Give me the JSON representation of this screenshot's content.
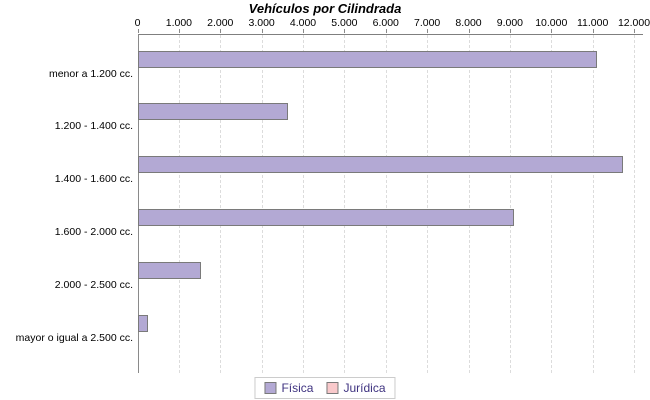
{
  "chart_data": {
    "type": "bar",
    "orientation": "horizontal",
    "title": "Vehículos por Cilindrada",
    "categories": [
      "menor a 1.200 cc.",
      "1.200 - 1.400 cc.",
      "1.400 - 1.600 cc.",
      "1.600 - 2.000 cc.",
      "2.000 - 2.500 cc.",
      "mayor o igual a 2.500 cc."
    ],
    "series": [
      {
        "name": "Física",
        "color": "#b3a9d4",
        "border_color": "#7a7a7a",
        "values": [
          11050,
          3580,
          11670,
          9050,
          1480,
          200
        ]
      },
      {
        "name": "Jurídica",
        "color": "#f9c9cb",
        "border_color": "#7a7a7a",
        "values": [
          0,
          0,
          0,
          0,
          0,
          0
        ]
      }
    ],
    "x_axis": {
      "position": "top",
      "min": 0,
      "max": 12000,
      "tick_step": 1000,
      "tick_labels": [
        "0",
        "1.000",
        "2.000",
        "3.000",
        "4.000",
        "5.000",
        "6.000",
        "7.000",
        "8.000",
        "9.000",
        "10.000",
        "11.000",
        "12.000"
      ]
    },
    "grid": {
      "vertical_dashed": true,
      "color": "#dcdcdc"
    },
    "legend": {
      "position": "bottom",
      "text_color": "#3f3380"
    }
  }
}
